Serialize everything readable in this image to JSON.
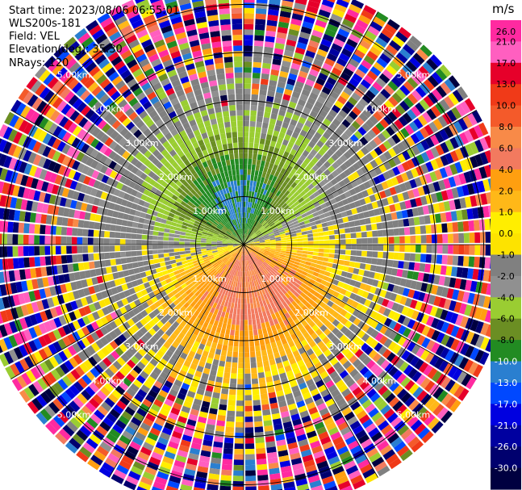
{
  "header": {
    "start_time": "Start time: 2023/08/06 06:55:01",
    "instrument": "WLS200s-181",
    "field": "Field: VEL",
    "elevation": "Elevation(deg): 35.30",
    "nrays": "NRays: 120"
  },
  "chart_data": {
    "type": "polar-ppi",
    "field": "VEL",
    "unit": "m/s",
    "nrays": 120,
    "max_range_km": 5.6,
    "range_rings_km": [
      1,
      2,
      3,
      4,
      5
    ],
    "ring_labels": [
      "1.00km",
      "2.00km",
      "3.00km",
      "4.00km",
      "5.00km"
    ],
    "ring_label_azimuths_deg": [
      315,
      45,
      135,
      225
    ],
    "spokes_deg": [
      0,
      30,
      60,
      90,
      120,
      150,
      180,
      210,
      240,
      270,
      300,
      330
    ],
    "approaching_center_azimuth_deg": 350,
    "receding_center_azimuth_deg": 170,
    "colorbar": {
      "ticks": [
        "26.0",
        "21.0",
        "17.0",
        "13.0",
        "10.0",
        "8.0",
        "6.0",
        "4.0",
        "2.0",
        "1.0",
        "0.0",
        "-1.0",
        "-2.0",
        "-4.0",
        "-6.0",
        "-8.0",
        "-10.0",
        "-13.0",
        "-17.0",
        "-21.0",
        "-26.0",
        "-30.0"
      ],
      "bins": [
        {
          "lo": 26,
          "hi": 30,
          "color": "#ff2aa0"
        },
        {
          "lo": 21,
          "hi": 26,
          "color": "#ff5fc0"
        },
        {
          "lo": 17,
          "hi": 21,
          "color": "#e6002a"
        },
        {
          "lo": 13,
          "hi": 17,
          "color": "#f03a18"
        },
        {
          "lo": 10,
          "hi": 13,
          "color": "#f45a2a"
        },
        {
          "lo": 8,
          "hi": 10,
          "color": "#f88a48"
        },
        {
          "lo": 6,
          "hi": 8,
          "color": "#f27a5f"
        },
        {
          "lo": 4,
          "hi": 6,
          "color": "#ff9f10"
        },
        {
          "lo": 2,
          "hi": 4,
          "color": "#ffb818"
        },
        {
          "lo": 1,
          "hi": 2,
          "color": "#ffee00"
        },
        {
          "lo": 0,
          "hi": 1,
          "color": "#fde300"
        },
        {
          "lo": -1,
          "hi": 0,
          "color": "#808080"
        },
        {
          "lo": -2,
          "hi": -1,
          "color": "#909090"
        },
        {
          "lo": -4,
          "hi": -2,
          "color": "#9acd32"
        },
        {
          "lo": -6,
          "hi": -4,
          "color": "#6b8e23"
        },
        {
          "lo": -8,
          "hi": -6,
          "color": "#228b22"
        },
        {
          "lo": -10,
          "hi": -8,
          "color": "#2a7fd0"
        },
        {
          "lo": -13,
          "hi": -10,
          "color": "#0048ff"
        },
        {
          "lo": -17,
          "hi": -13,
          "color": "#0000e0"
        },
        {
          "lo": -21,
          "hi": -17,
          "color": "#0000a0"
        },
        {
          "lo": -26,
          "hi": -21,
          "color": "#00006e"
        },
        {
          "lo": -30,
          "hi": -26,
          "color": "#000040"
        }
      ]
    }
  }
}
